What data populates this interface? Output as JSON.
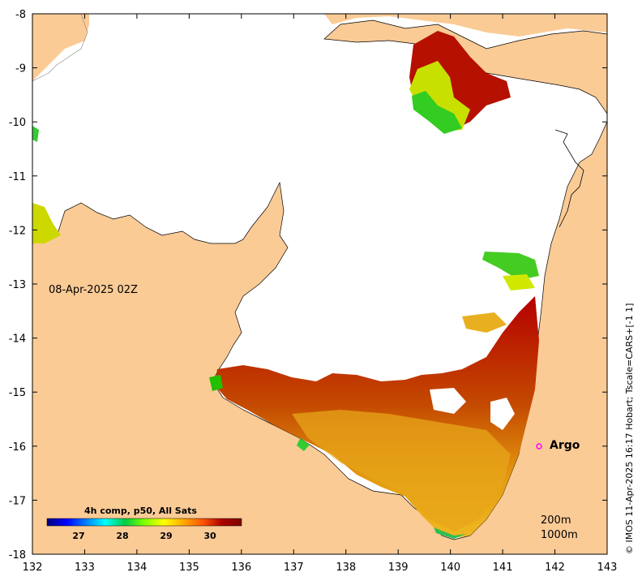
{
  "map": {
    "lon_range": [
      132,
      143
    ],
    "lat_range": [
      -18,
      -8
    ],
    "x_ticks": [
      "132",
      "133",
      "134",
      "135",
      "136",
      "137",
      "138",
      "139",
      "140",
      "141",
      "142",
      "143"
    ],
    "y_ticks": [
      "-8",
      "-9",
      "-10",
      "-11",
      "-12",
      "-13",
      "-14",
      "-15",
      "-16",
      "-17",
      "-18"
    ],
    "land_color": "#fbcb96",
    "no_data_color": "#ffffff"
  },
  "date_label": "08-Apr-2025 02Z",
  "legend": {
    "title": "4h comp, p50, All Sats",
    "ticks": [
      "27",
      "28",
      "29",
      "30"
    ],
    "colormap": [
      "#00007f",
      "#0000ff",
      "#007fff",
      "#00ffff",
      "#00cc44",
      "#7fff00",
      "#ffff00",
      "#ffaa00",
      "#ff5500",
      "#aa0000",
      "#7f0000"
    ]
  },
  "contours": [
    "200m",
    "1000m"
  ],
  "argo": {
    "label": "Argo",
    "lon": 141.65,
    "lat": -16.0,
    "color": "#ff00ff"
  },
  "credit": "© IMOS 11-Apr-2025 16:17 Hobart; Tscale=CARS+[-1 1]"
}
